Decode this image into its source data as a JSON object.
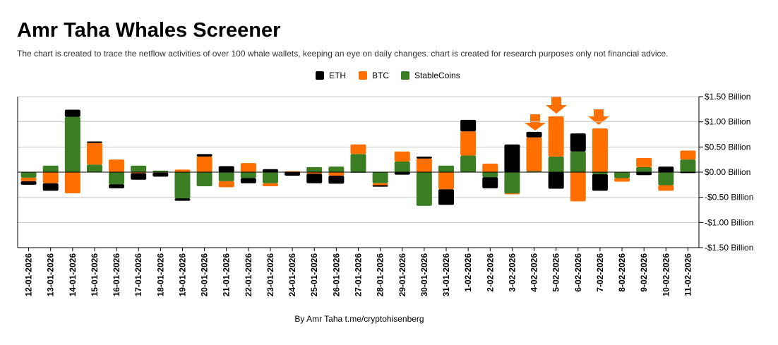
{
  "chart_data": {
    "type": "stacked_bar",
    "title": "Amr Taha Whales Screener",
    "subtitle": "The chart is created to trace the netflow activities of over 100 whale wallets, keeping an eye on daily changes.  chart is created for research purposes only not financial advice.",
    "footer": "By Amr Taha  t.me/cryptohisenberg",
    "categories": [
      "12-01-2026",
      "13-01-2026",
      "14-01-2026",
      "15-01-2026",
      "16-01-2026",
      "17-01-2026",
      "18-01-2026",
      "19-01-2026",
      "20-01-2026",
      "21-01-2026",
      "22-01-2026",
      "23-01-2026",
      "24-01-2026",
      "25-01-2026",
      "26-01-2026",
      "27-01-2026",
      "28-01-2026",
      "29-01-2026",
      "30-01-2026",
      "31-01-2026",
      "1-02-2026",
      "2-02-2026",
      "3-02-2026",
      "4-02-2026",
      "5-02-2026",
      "6-02-2026",
      "7-02-2026",
      "8-02-2026",
      "9-02-2026",
      "10-02-2026",
      "11-02-2026"
    ],
    "series": [
      {
        "name": "ETH",
        "color": "#000000",
        "values": [
          -0.07,
          -0.15,
          0.14,
          0.03,
          -0.08,
          -0.13,
          -0.08,
          -0.05,
          0.05,
          0.12,
          -0.1,
          0.06,
          -0.07,
          -0.19,
          -0.16,
          -0.01,
          -0.03,
          -0.05,
          0.04,
          -0.31,
          0.23,
          -0.22,
          0.55,
          0.11,
          -0.33,
          0.36,
          -0.33,
          0,
          -0.06,
          0.11,
          -0.02
        ]
      },
      {
        "name": "BTC",
        "color": "#ff6f00",
        "values": [
          -0.07,
          -0.22,
          -0.42,
          0.43,
          0.25,
          -0.02,
          -0.01,
          0.05,
          0.31,
          -0.12,
          0.18,
          -0.06,
          0.02,
          -0.03,
          -0.07,
          0.19,
          -0.04,
          0.2,
          0.27,
          -0.34,
          0.48,
          0.17,
          -0.02,
          0.67,
          0.8,
          -0.58,
          0.87,
          -0.07,
          0.18,
          -0.11,
          0.18
        ]
      },
      {
        "name": "StableCoins",
        "color": "#3a7d22",
        "values": [
          -0.11,
          0.13,
          1.1,
          0.15,
          -0.24,
          0.13,
          0.03,
          -0.52,
          -0.28,
          -0.18,
          -0.12,
          -0.22,
          0,
          0.1,
          0.11,
          0.36,
          -0.22,
          0.21,
          -0.67,
          0.13,
          0.33,
          -0.1,
          -0.42,
          0.02,
          0.31,
          0.41,
          -0.04,
          -0.12,
          0.1,
          -0.26,
          0.25
        ]
      }
    ],
    "ylim": [
      -1.5,
      1.5
    ],
    "yticks": [
      {
        "value": 1.5,
        "label": "$1.50 Billion"
      },
      {
        "value": 1.0,
        "label": "$1.00 Billion"
      },
      {
        "value": 0.5,
        "label": "$0.50 Billion"
      },
      {
        "value": 0,
        "label": "$0.00 Billion"
      },
      {
        "value": -0.5,
        "label": "-$0.50 Billion"
      },
      {
        "value": -1.0,
        "label": "-$1.00 Billion"
      },
      {
        "value": -1.5,
        "label": "-$1.50 Billion"
      }
    ],
    "grid": true,
    "legend": "top"
  }
}
